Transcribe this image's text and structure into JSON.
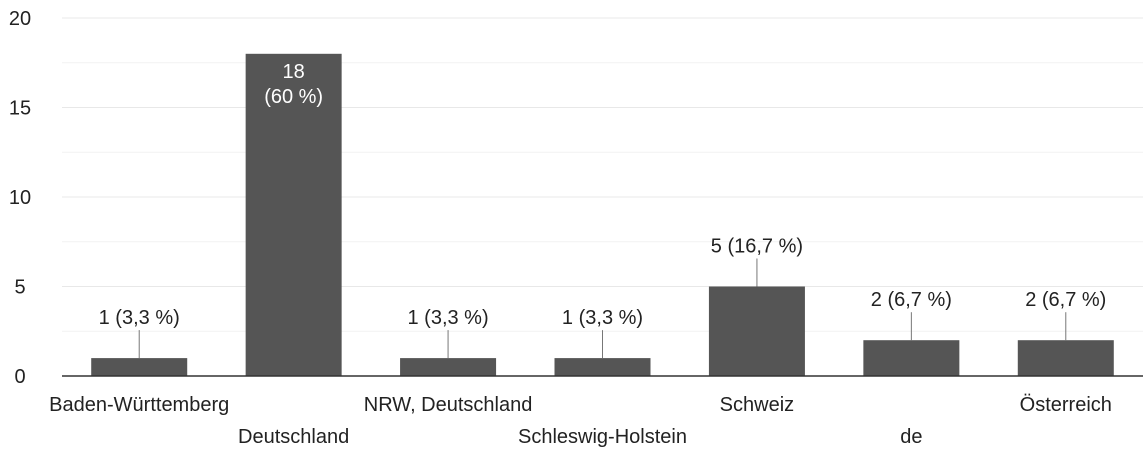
{
  "chart_data": {
    "type": "bar",
    "categories": [
      "Baden-Württemberg",
      "Deutschland",
      "NRW, Deutschland",
      "Schleswig-Holstein",
      "Schweiz",
      "de",
      "Österreich"
    ],
    "values": [
      1,
      18,
      1,
      1,
      5,
      2,
      2
    ],
    "data_labels": [
      "1 (3,3 %)",
      "18 (60 %)",
      "1 (3,3 %)",
      "1 (3,3 %)",
      "5 (16,7 %)",
      "2 (6,7 %)",
      "2 (6,7 %)"
    ],
    "title": "",
    "xlabel": "",
    "ylabel": "",
    "ylim": [
      0,
      20
    ],
    "yticks": [
      0,
      5,
      10,
      15,
      20
    ],
    "grid": true,
    "bar_color": "#555555",
    "grid_color": "#e8e8e8",
    "minor_grid_color": "#f2f2f2",
    "axis_color": "#333333"
  }
}
